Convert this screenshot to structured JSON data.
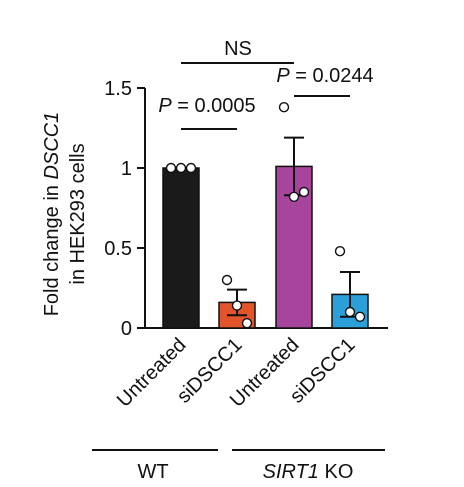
{
  "chart_data": {
    "type": "bar",
    "ylabel_prefix": "Fold  change in ",
    "ylabel_gene": "DSCC1",
    "ylabel_line2": "in HEK293 cells",
    "ylim": [
      0,
      1.5
    ],
    "yticks": [
      "0",
      "0.5",
      "1",
      "1.5"
    ],
    "categories": [
      "Untreated",
      "siDSCC1",
      "Untreated",
      "siDSCC1"
    ],
    "values": [
      1.0,
      0.16,
      1.01,
      0.21
    ],
    "errors": [
      0.0,
      0.08,
      0.18,
      0.14
    ],
    "points": [
      [
        1.0,
        1.0,
        1.0
      ],
      [
        0.3,
        0.14,
        0.03
      ],
      [
        1.38,
        0.82,
        0.85
      ],
      [
        0.48,
        0.1,
        0.07
      ]
    ],
    "colors": [
      "#1a1a1a",
      "#e3542b",
      "#a6459b",
      "#2a9fd8"
    ],
    "groups": [
      {
        "label": "WT",
        "label_italic": "",
        "label_rest": ""
      },
      {
        "label": "",
        "label_italic": "SIRT1",
        "label_rest": " KO"
      }
    ],
    "annotations": [
      {
        "label": "NS"
      },
      {
        "p_prefix": "P",
        "label": " = 0.0005"
      },
      {
        "p_prefix": "P",
        "label": " = 0.0244"
      }
    ]
  }
}
